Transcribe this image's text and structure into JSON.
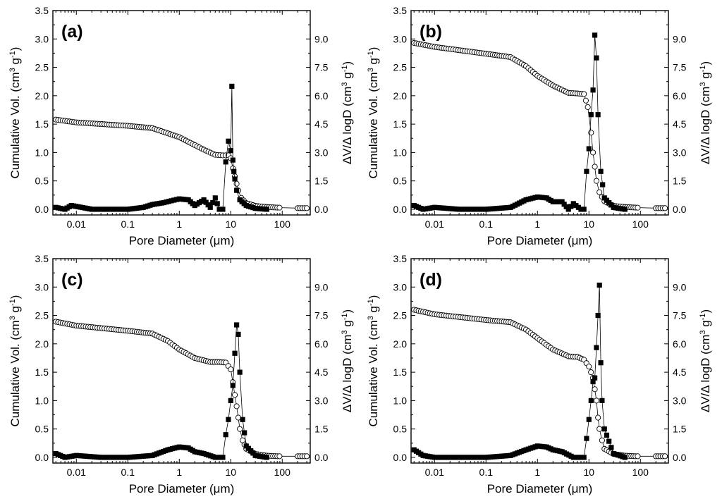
{
  "figure": {
    "description_free": true,
    "x_label_parts": [
      "Pore Diameter (",
      "μ",
      "m)"
    ],
    "y_left_label_parts": [
      "Cumulative Vol. (cm",
      "3",
      " g",
      "-1",
      ")"
    ],
    "y_right_label_parts": [
      "ΔV/Δ logD (cm",
      "3",
      " g",
      "-1",
      ")"
    ],
    "x_tick_labels": [
      "0.01",
      "0.1",
      "1",
      "10",
      "100"
    ],
    "y_left_tick_labels": [
      "0.0",
      "0.5",
      "1.0",
      "1.5",
      "2.0",
      "2.5",
      "3.0",
      "3.5"
    ],
    "y_right_tick_labels": [
      "0.0",
      "1.5",
      "3.0",
      "4.5",
      "6.0",
      "7.5",
      "9.0"
    ]
  },
  "chart_data": [
    {
      "type": "scatter",
      "panel": "(a)",
      "xscale": "log",
      "xlim": [
        0.0035,
        350
      ],
      "ylim_left": [
        -0.1,
        3.5
      ],
      "ylim_right": [
        -0.3,
        10.5
      ],
      "xlabel": "Pore Diameter (μm)",
      "ylabel_left": "Cumulative Vol. (cm3 g-1)",
      "ylabel_right": "ΔV/Δ logD (cm3 g-1)",
      "cumulative": {
        "name": "Cumulative Vol.",
        "marker": "open circle",
        "x": [
          0.004,
          0.01,
          0.1,
          0.3,
          1.0,
          3.0,
          5.0,
          7.0,
          9.0,
          10.0,
          11.0,
          12.0,
          13.0,
          14.0,
          16.0,
          20.0,
          30.0,
          50.0,
          80.0,
          200.0,
          300.0
        ],
        "y": [
          1.58,
          1.53,
          1.47,
          1.43,
          1.27,
          1.05,
          0.96,
          0.95,
          0.95,
          0.9,
          0.72,
          0.58,
          0.45,
          0.33,
          0.2,
          0.11,
          0.06,
          0.04,
          0.03,
          0.02,
          0.02
        ]
      },
      "distribution": {
        "name": "ΔV/Δ logD",
        "marker": "filled square",
        "x": [
          0.004,
          0.006,
          0.008,
          0.02,
          0.05,
          0.1,
          0.2,
          0.3,
          0.5,
          0.7,
          1.0,
          1.5,
          2.0,
          3.0,
          4.0,
          5.0,
          6.0,
          7.0,
          8.0,
          9.0,
          10.0,
          10.5,
          11.0,
          11.5,
          12.0,
          13.0,
          15.0,
          20.0,
          30.0,
          50.0
        ],
        "y": [
          0.1,
          0.0,
          0.2,
          0.0,
          0.0,
          0.0,
          0.1,
          0.25,
          0.35,
          0.45,
          0.55,
          0.5,
          0.2,
          0.5,
          0.1,
          0.6,
          0.0,
          0.0,
          2.5,
          3.6,
          3.1,
          6.5,
          2.6,
          2.0,
          1.6,
          1.0,
          0.5,
          0.2,
          0.05,
          0.0
        ]
      }
    },
    {
      "type": "scatter",
      "panel": "(b)",
      "xscale": "log",
      "xlim": [
        0.0035,
        350
      ],
      "ylim_left": [
        -0.1,
        3.5
      ],
      "ylim_right": [
        -0.3,
        10.5
      ],
      "xlabel": "Pore Diameter (μm)",
      "ylabel_left": "Cumulative Vol. (cm3 g-1)",
      "ylabel_right": "ΔV/Δ logD (cm3 g-1)",
      "cumulative": {
        "name": "Cumulative Vol.",
        "marker": "open circle",
        "x": [
          0.004,
          0.01,
          0.1,
          0.3,
          0.6,
          1.0,
          2.0,
          4.0,
          6.0,
          8.0,
          9.5,
          11.0,
          12.0,
          13.0,
          14.0,
          16.0,
          20.0,
          30.0,
          50.0,
          80.0,
          200.0,
          300.0
        ],
        "y": [
          2.93,
          2.86,
          2.74,
          2.68,
          2.52,
          2.35,
          2.18,
          2.05,
          2.04,
          2.03,
          1.8,
          1.35,
          1.0,
          0.75,
          0.5,
          0.3,
          0.14,
          0.06,
          0.04,
          0.03,
          0.02,
          0.02
        ]
      },
      "distribution": {
        "name": "ΔV/Δ logD",
        "marker": "filled square",
        "x": [
          0.004,
          0.006,
          0.01,
          0.03,
          0.1,
          0.3,
          0.6,
          1.0,
          1.5,
          2.0,
          3.0,
          4.0,
          5.0,
          7.0,
          8.0,
          9.0,
          10.0,
          11.0,
          12.0,
          13.0,
          14.0,
          15.0,
          17.0,
          20.0,
          30.0,
          50.0
        ],
        "y": [
          0.2,
          0.0,
          0.1,
          0.0,
          0.0,
          0.1,
          0.5,
          0.65,
          0.6,
          0.4,
          0.4,
          0.0,
          0.3,
          0.0,
          0.0,
          2.0,
          3.2,
          5.0,
          6.3,
          9.2,
          8.0,
          5.0,
          2.0,
          0.6,
          0.1,
          0.0
        ]
      }
    },
    {
      "type": "scatter",
      "panel": "(c)",
      "xscale": "log",
      "xlim": [
        0.0035,
        350
      ],
      "ylim_left": [
        -0.1,
        3.5
      ],
      "ylim_right": [
        -0.3,
        10.5
      ],
      "xlabel": "Pore Diameter (μm)",
      "ylabel_left": "Cumulative Vol. (cm3 g-1)",
      "ylabel_right": "ΔV/Δ logD (cm3 g-1)",
      "cumulative": {
        "name": "Cumulative Vol.",
        "marker": "open circle",
        "x": [
          0.004,
          0.01,
          0.1,
          0.3,
          0.6,
          1.0,
          2.0,
          4.0,
          6.0,
          8.0,
          10.0,
          12.0,
          13.0,
          14.0,
          15.0,
          17.0,
          20.0,
          30.0,
          50.0,
          80.0,
          200.0,
          300.0
        ],
        "y": [
          2.39,
          2.32,
          2.23,
          2.18,
          2.05,
          1.9,
          1.75,
          1.68,
          1.68,
          1.67,
          1.55,
          1.1,
          0.9,
          0.7,
          0.5,
          0.3,
          0.15,
          0.06,
          0.03,
          0.02,
          0.02,
          0.02
        ]
      },
      "distribution": {
        "name": "ΔV/Δ logD",
        "marker": "filled square",
        "x": [
          0.004,
          0.006,
          0.01,
          0.03,
          0.1,
          0.3,
          0.6,
          1.0,
          1.5,
          2.0,
          3.0,
          5.0,
          7.0,
          8.0,
          9.0,
          10.0,
          11.0,
          12.0,
          13.0,
          14.0,
          15.0,
          17.0,
          20.0,
          30.0,
          50.0
        ],
        "y": [
          0.2,
          0.0,
          0.1,
          0.0,
          0.0,
          0.1,
          0.4,
          0.55,
          0.5,
          0.3,
          0.2,
          0.0,
          0.0,
          1.2,
          2.0,
          3.0,
          3.8,
          5.5,
          7.0,
          6.5,
          4.5,
          2.0,
          0.6,
          0.1,
          0.0
        ]
      }
    },
    {
      "type": "scatter",
      "panel": "(d)",
      "xscale": "log",
      "xlim": [
        0.0035,
        350
      ],
      "ylim_left": [
        -0.1,
        3.5
      ],
      "ylim_right": [
        -0.3,
        10.5
      ],
      "xlabel": "Pore Diameter (μm)",
      "ylabel_left": "Cumulative Vol. (cm3 g-1)",
      "ylabel_right": "ΔV/Δ logD (cm3 g-1)",
      "cumulative": {
        "name": "Cumulative Vol.",
        "marker": "open circle",
        "x": [
          0.004,
          0.01,
          0.1,
          0.3,
          0.6,
          1.0,
          2.0,
          4.0,
          6.0,
          8.0,
          10.0,
          12.0,
          13.0,
          14.0,
          15.0,
          16.0,
          18.0,
          20.0,
          30.0,
          50.0,
          80.0,
          200.0,
          300.0
        ],
        "y": [
          2.6,
          2.52,
          2.42,
          2.38,
          2.25,
          2.1,
          1.9,
          1.78,
          1.77,
          1.72,
          1.6,
          1.4,
          1.2,
          1.0,
          0.7,
          0.5,
          0.3,
          0.15,
          0.06,
          0.03,
          0.02,
          0.02,
          0.02
        ]
      },
      "distribution": {
        "name": "ΔV/Δ logD",
        "marker": "filled square",
        "x": [
          0.004,
          0.006,
          0.01,
          0.03,
          0.1,
          0.3,
          0.6,
          1.0,
          1.5,
          2.0,
          3.0,
          5.0,
          7.0,
          8.0,
          9.0,
          10.0,
          11.0,
          12.0,
          13.0,
          14.0,
          15.0,
          16.0,
          17.0,
          18.0,
          20.0,
          30.0,
          50.0
        ],
        "y": [
          0.4,
          0.1,
          0.0,
          0.0,
          0.0,
          0.1,
          0.4,
          0.6,
          0.55,
          0.4,
          0.3,
          0.0,
          0.0,
          0.0,
          1.0,
          2.0,
          3.0,
          4.0,
          4.2,
          5.8,
          7.5,
          9.1,
          5.0,
          3.0,
          1.5,
          0.2,
          0.0
        ]
      }
    }
  ]
}
